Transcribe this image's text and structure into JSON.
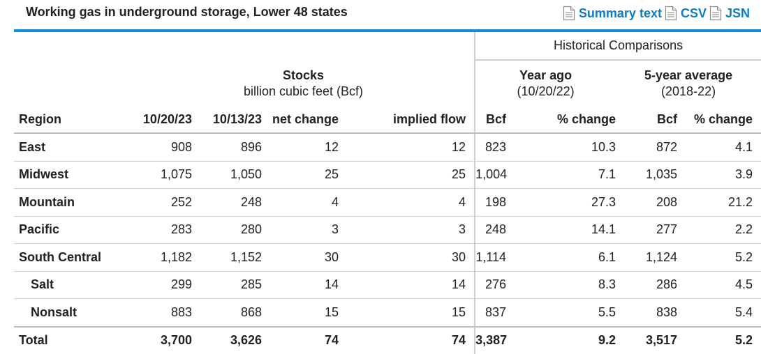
{
  "header": {
    "title": "Working gas in underground storage, Lower 48 states",
    "links": [
      {
        "label": "Summary text",
        "icon": "document-icon"
      },
      {
        "label": "CSV",
        "icon": "document-icon"
      },
      {
        "label": "JSN",
        "icon": "document-icon"
      }
    ]
  },
  "table": {
    "historical_label": "Historical Comparisons",
    "groups": {
      "stocks": {
        "title": "Stocks",
        "sub": "billion cubic feet (Bcf)"
      },
      "year_ago": {
        "title": "Year ago",
        "sub": "(10/20/22)"
      },
      "five_year": {
        "title": "5-year average",
        "sub": "(2018-22)"
      }
    },
    "columns": [
      "Region",
      "10/20/23",
      "10/13/23",
      "net change",
      "implied flow",
      "Bcf",
      "% change",
      "Bcf",
      "% change"
    ],
    "rows": [
      {
        "region": "East",
        "cells": [
          "908",
          "896",
          "12",
          "12",
          "823",
          "10.3",
          "872",
          "4.1"
        ]
      },
      {
        "region": "Midwest",
        "cells": [
          "1,075",
          "1,050",
          "25",
          "25",
          "1,004",
          "7.1",
          "1,035",
          "3.9"
        ]
      },
      {
        "region": "Mountain",
        "cells": [
          "252",
          "248",
          "4",
          "4",
          "198",
          "27.3",
          "208",
          "21.2"
        ]
      },
      {
        "region": "Pacific",
        "cells": [
          "283",
          "280",
          "3",
          "3",
          "248",
          "14.1",
          "277",
          "2.2"
        ]
      },
      {
        "region": "South Central",
        "cells": [
          "1,182",
          "1,152",
          "30",
          "30",
          "1,114",
          "6.1",
          "1,124",
          "5.2"
        ]
      },
      {
        "region": "Salt",
        "cells": [
          "299",
          "285",
          "14",
          "14",
          "276",
          "8.3",
          "286",
          "4.5"
        ]
      },
      {
        "region": "Nonsalt",
        "cells": [
          "883",
          "868",
          "15",
          "15",
          "837",
          "5.5",
          "838",
          "5.4"
        ]
      }
    ],
    "total": {
      "region": "Total",
      "cells": [
        "3,700",
        "3,626",
        "74",
        "74",
        "3,387",
        "9.2",
        "3,517",
        "5.2"
      ]
    }
  },
  "colors": {
    "accent": "#0e8fd8",
    "link": "#0e7bc4",
    "rule_gray": "#cfcfcf"
  }
}
